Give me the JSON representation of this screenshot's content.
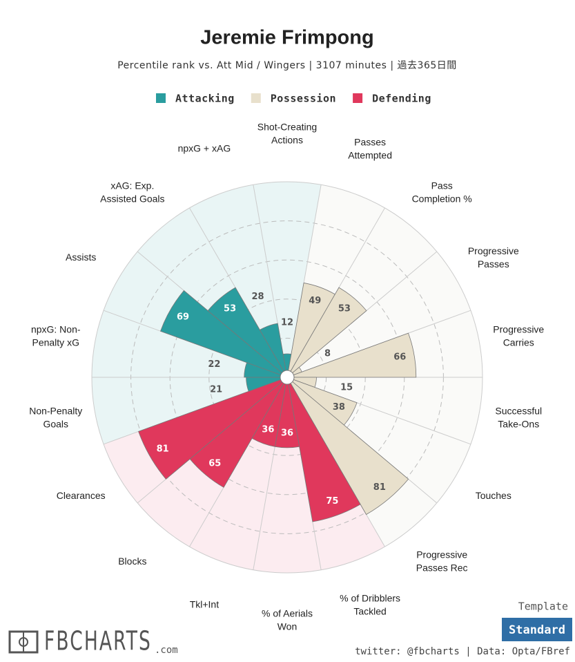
{
  "chart_data": {
    "type": "pizza",
    "title": "Jeremie Frimpong",
    "subtitle": "Percentile rank vs. Att Mid / Wingers | 3107 minutes | 過去365日間",
    "ylim": [
      0,
      100
    ],
    "yticks": [
      20,
      40,
      60,
      80,
      100
    ],
    "series": [
      {
        "name": "Attacking",
        "color": "#2a9d9f",
        "bg_color": "#e9f5f5",
        "label_color": "#ffffff",
        "categories": [
          "Non-Penalty\nGoals",
          "npxG: Non-\nPenalty xG",
          "Assists",
          "xAG: Exp.\nAssisted Goals",
          "npxG + xAG",
          "Shot-Creating\nActions"
        ],
        "values": [
          21,
          22,
          69,
          53,
          28,
          12
        ]
      },
      {
        "name": "Possession",
        "color": "#e8e0cc",
        "bg_color": "#fafaf8",
        "label_color": "#555555",
        "categories": [
          "Passes\nAttempted",
          "Pass\nCompletion %",
          "Progressive\nPasses",
          "Progressive\nCarries",
          "Successful\nTake-Ons",
          "Touches",
          "Progressive\nPasses Rec"
        ],
        "values": [
          49,
          53,
          8,
          66,
          15,
          38,
          81
        ]
      },
      {
        "name": "Defending",
        "color": "#e0385c",
        "bg_color": "#fcecf0",
        "label_color": "#ffffff",
        "categories": [
          "% of Dribblers\nTackled",
          "% of Aerials\nWon",
          "Tkl+Int",
          "Blocks",
          "Clearances"
        ],
        "values": [
          75,
          36,
          36,
          65,
          81
        ]
      }
    ]
  },
  "footer": {
    "template_label": "Template",
    "template_button": "Standard",
    "credits": "twitter: @fbcharts | Data: Opta/FBref",
    "logo": "FBCHARTS",
    "logo_suffix": ".com"
  }
}
